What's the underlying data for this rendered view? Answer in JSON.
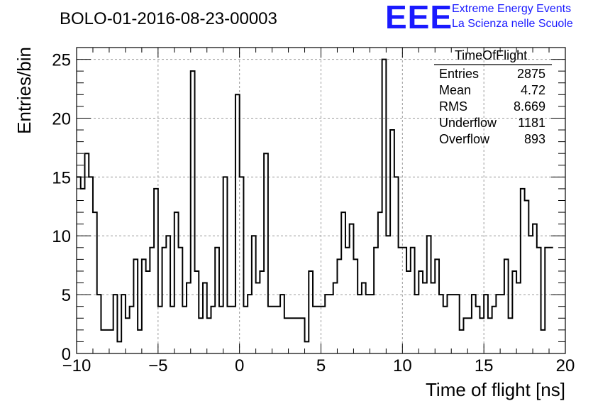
{
  "chart_data": {
    "type": "bar",
    "title": "BOLO-01-2016-08-23-00003",
    "xlabel": "Time of flight [ns]",
    "ylabel": "Entries/bin",
    "xlim": [
      -10,
      20
    ],
    "ylim": [
      0,
      26
    ],
    "grid": true,
    "bin_width": 0.25,
    "xticks": [
      "−10",
      "−5",
      "0",
      "5",
      "10",
      "15",
      "20"
    ],
    "yticks": [
      "0",
      "5",
      "10",
      "15",
      "20",
      "25"
    ],
    "values": [
      15,
      14,
      17,
      15,
      12,
      5,
      2,
      2,
      2,
      5,
      1,
      5,
      3,
      4,
      8,
      2,
      8,
      7,
      9,
      14,
      4,
      9,
      10,
      4,
      12,
      9,
      4,
      6,
      24,
      7,
      3,
      6,
      3,
      4,
      9,
      4,
      15,
      4,
      4,
      22,
      15,
      4,
      5,
      10,
      6,
      7,
      17,
      4,
      4,
      4,
      5,
      3,
      3,
      3,
      3,
      3,
      1,
      7,
      4,
      4,
      4,
      5,
      5,
      6,
      8,
      12,
      9,
      11,
      8,
      5,
      6,
      5,
      5,
      9,
      12,
      25,
      10,
      19,
      15,
      9,
      9,
      7,
      9,
      5,
      7,
      6,
      10,
      6,
      8,
      5,
      4,
      5,
      5,
      5,
      2,
      3,
      3,
      5,
      4,
      3,
      5,
      3,
      4,
      5,
      5,
      8,
      3,
      7,
      6,
      14,
      13,
      10,
      11,
      9,
      2,
      9,
      9
    ],
    "stats": {
      "name": "TimeOfFlight",
      "rows": [
        {
          "label": "Entries",
          "value": "2875"
        },
        {
          "label": "Mean",
          "value": "4.72"
        },
        {
          "label": "RMS",
          "value": "8.669"
        },
        {
          "label": "Underflow",
          "value": "1181"
        },
        {
          "label": "Overflow",
          "value": "893"
        }
      ]
    },
    "line_color": "#000000",
    "grid_color": "#9a9a9a"
  },
  "logo": {
    "mark": "EEE",
    "line1": "Extreme Energy Events",
    "line2": "La Scienza nelle Scuole",
    "color": "#1a1aff"
  }
}
